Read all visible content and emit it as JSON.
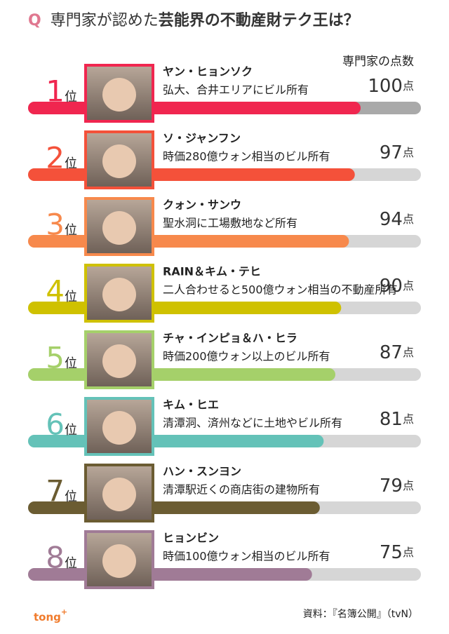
{
  "chart_data": {
    "type": "bar",
    "title_mark": "Q",
    "title_plain": "専門家が認めた",
    "title_bold": "芸能界の不動産財テク王は？",
    "score_header": "専門家の点数",
    "rank_suffix": "位",
    "score_suffix": "点",
    "ranks": [
      "1",
      "2",
      "3",
      "4",
      "5",
      "6",
      "7",
      "8"
    ],
    "names": [
      "ヤン・ヒョンソク",
      "ソ・ジャンフン",
      "クォン・サンウ",
      "RAIN＆キム・テヒ",
      "チャ・インピョ＆ハ・ヒラ",
      "キム・ヒエ",
      "ハン・スンヨン",
      "ヒョンビン"
    ],
    "descriptions": [
      "弘大、合井エリアにビル所有",
      "時価280億ウォン相当のビル所有",
      "聖水洞に工場敷地など所有",
      "二人合わせると500億ウォン相当の不動産所有",
      "時価200億ウォン以上のビル所有",
      "清潭洞、済州などに土地やビル所有",
      "清潭駅近くの商店街の建物所有",
      "時価100億ウォン相当のビル所有"
    ],
    "values": [
      100,
      97,
      94,
      90,
      87,
      81,
      79,
      75
    ],
    "colors": [
      "#f0264f",
      "#f4513a",
      "#f7894c",
      "#cfc100",
      "#a5d06a",
      "#64c2b8",
      "#6b5c32",
      "#a07b96"
    ],
    "xlim": [
      -71,
      131
    ],
    "source": "資料：『名簿公開』（tvN）",
    "logo": "tong",
    "logo_mark": "+"
  }
}
